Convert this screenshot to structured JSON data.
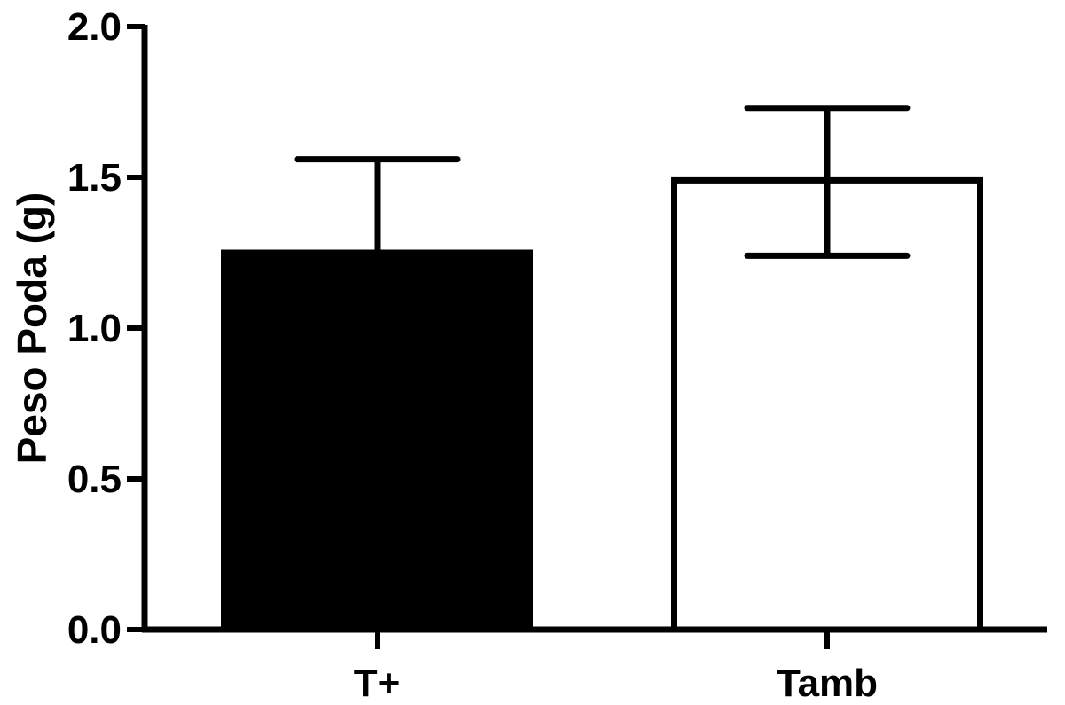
{
  "chart_data": {
    "type": "bar",
    "title": "",
    "xlabel": "",
    "ylabel": "Peso Poda (g)",
    "ylim": [
      0,
      2.0
    ],
    "yticks": [
      "0.0",
      "0.5",
      "1.0",
      "1.5",
      "2.0"
    ],
    "grid": false,
    "categories": [
      "T+",
      "Tamb"
    ],
    "values": [
      1.25,
      1.49
    ],
    "error_upper": [
      1.56,
      1.73
    ],
    "error_lower": [
      null,
      1.24
    ],
    "bar_fill_colors": [
      "#000000",
      "#ffffff"
    ],
    "bar_stroke_color": "#000000"
  }
}
